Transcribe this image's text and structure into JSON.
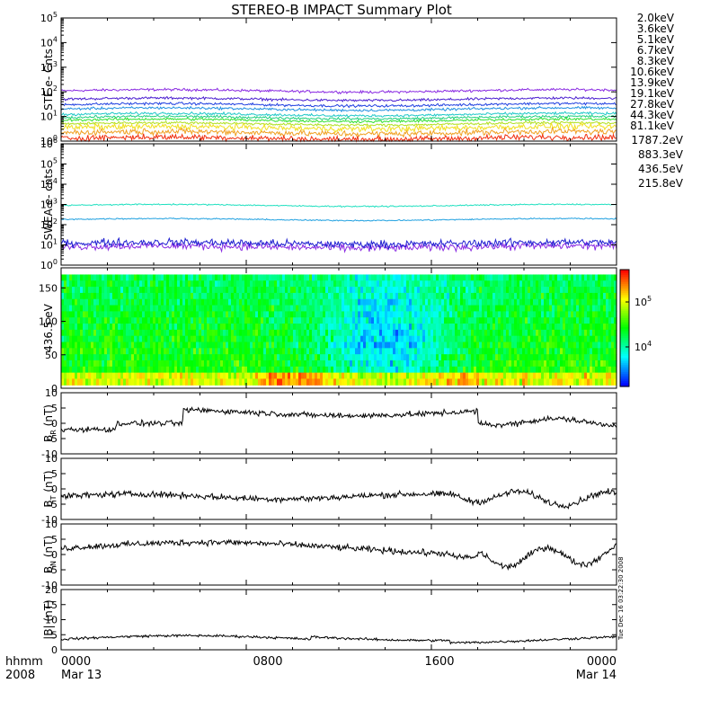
{
  "title": "STEREO-B IMPACT Summary Plot",
  "footer": {
    "label_hhmm": "hhmm",
    "label_year": "2008",
    "date_start": "Mar 13",
    "date_end": "Mar 14",
    "time_ticks": [
      "0000",
      "0800",
      "1600",
      "0000"
    ]
  },
  "side_stamp": "Tue Dec 16 03:22:30 2008",
  "chart_data": [
    {
      "type": "line",
      "id": "ste",
      "ylabel": "STE e- Cnts",
      "yscale": "log",
      "ylim_exp": [
        0,
        5
      ],
      "ticks": [
        "10^0",
        "10^1",
        "10^2",
        "10^3",
        "10^4",
        "10^5"
      ],
      "series": [
        {
          "name": "2.0keV",
          "color": "#8a2be2",
          "level": 110
        },
        {
          "name": "3.6keV",
          "color": "#4b1fd0",
          "level": 50
        },
        {
          "name": "5.1keV",
          "color": "#1f3fe0",
          "level": 30
        },
        {
          "name": "6.7keV",
          "color": "#1f8fe0",
          "level": 20
        },
        {
          "name": "8.3keV",
          "color": "#20c8c8",
          "level": 12
        },
        {
          "name": "10.6keV",
          "color": "#20d080",
          "level": 9
        },
        {
          "name": "13.9keV",
          "color": "#30e030",
          "level": 7
        },
        {
          "name": "19.1keV",
          "color": "#b0e020",
          "level": 5
        },
        {
          "name": "27.8keV",
          "color": "#f0e020",
          "level": 3.5
        },
        {
          "name": "44.3keV",
          "color": "#f0a020",
          "level": 2.2
        },
        {
          "name": "81.1keV",
          "color": "#f03010",
          "level": 1.3
        }
      ]
    },
    {
      "type": "line",
      "id": "swea",
      "ylabel": "SWEA e- cnts",
      "yscale": "log",
      "ylim_exp": [
        0,
        6
      ],
      "ticks": [
        "10^0",
        "10^1",
        "10^2",
        "10^3",
        "10^4",
        "10^5",
        "10^6"
      ],
      "series": [
        {
          "name": "1787.2eV",
          "color": "#8a2be2",
          "level": 8
        },
        {
          "name": "883.3eV",
          "color": "#1f1fd0",
          "level": 12
        },
        {
          "name": "436.5eV",
          "color": "#1fa0e0",
          "level": 180
        },
        {
          "name": "215.8eV",
          "color": "#20e0c0",
          "level": 900
        }
      ]
    },
    {
      "type": "heatmap",
      "id": "pad",
      "ylabel": "436.5 eV",
      "ylim": [
        0,
        180
      ],
      "ticks": [
        "0",
        "50",
        "100",
        "150"
      ],
      "colorbar_ticks": [
        "10^5",
        "10^4"
      ]
    },
    {
      "type": "line",
      "id": "br",
      "ylabel": "B_R (nT)",
      "ylabel_main": "B",
      "ylabel_sub": "R",
      "ylabel_unit": "(nT)",
      "ylim": [
        -10,
        10
      ],
      "ticks": [
        "10",
        "5",
        "0",
        "-5",
        "-10"
      ]
    },
    {
      "type": "line",
      "id": "bt",
      "ylabel": "B_T (nT)",
      "ylabel_main": "B",
      "ylabel_sub": "T",
      "ylabel_unit": "(nT)",
      "ylim": [
        -10,
        10
      ],
      "ticks": [
        "10",
        "5",
        "0",
        "-5",
        "-10"
      ]
    },
    {
      "type": "line",
      "id": "bn",
      "ylabel": "B_N (nT)",
      "ylabel_main": "B",
      "ylabel_sub": "N",
      "ylabel_unit": "(nT)",
      "ylim": [
        -10,
        10
      ],
      "ticks": [
        "10",
        "5",
        "0",
        "-5",
        "-10"
      ]
    },
    {
      "type": "line",
      "id": "bmag",
      "ylabel": "|B| (nT)",
      "ylabel_main": "|B|",
      "ylabel_unit": "(nT)",
      "ylim": [
        0,
        20
      ],
      "ticks": [
        "20",
        "15",
        "10",
        "5",
        "0"
      ]
    }
  ]
}
